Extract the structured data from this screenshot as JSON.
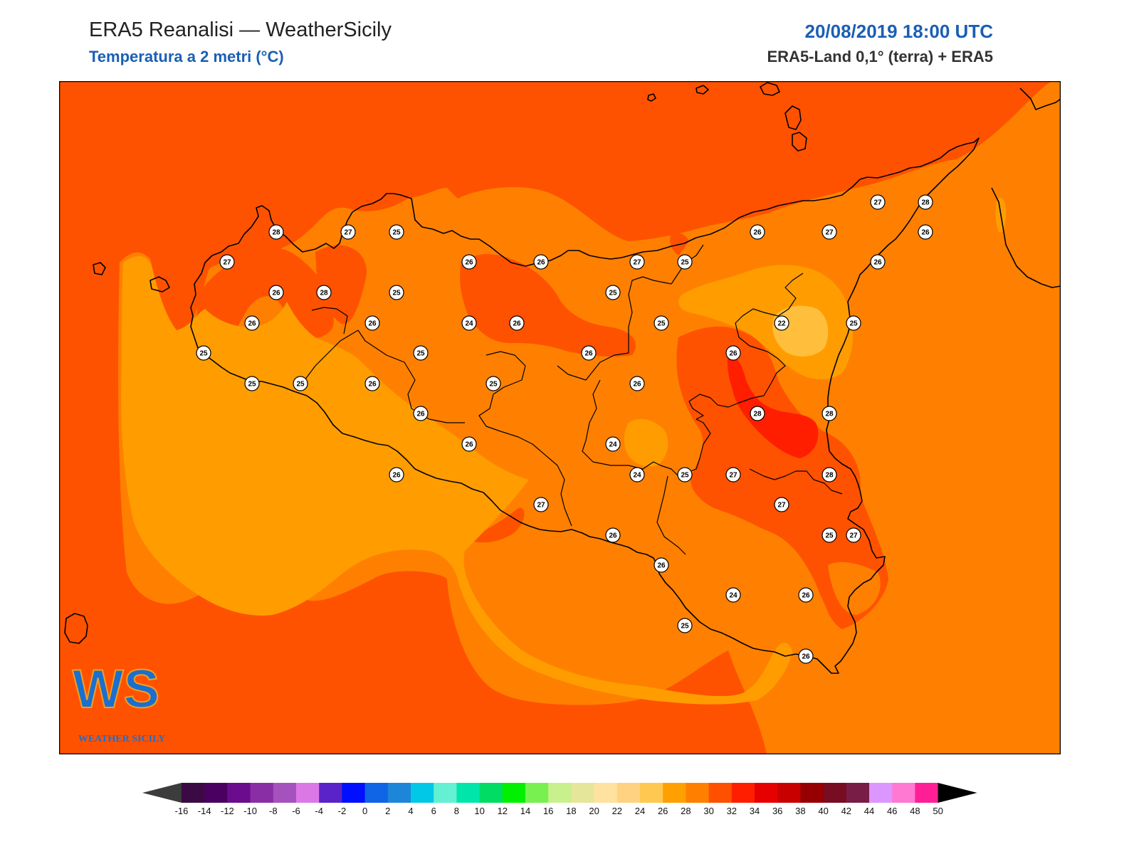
{
  "header": {
    "title": "ERA5 Reanalisi — WeatherSicily",
    "subtitle": "Temperatura a 2 metri (°C)",
    "datetime": "20/08/2019 18:00 UTC",
    "source": "ERA5-Land 0,1° (terra) + ERA5"
  },
  "logo": {
    "letters": "WS",
    "caption": "WEATHER SICILY"
  },
  "colors": {
    "t24": "#ff9d00",
    "t26": "#ff8000",
    "t28": "#ff5200",
    "t30": "#ff1e00",
    "t22": "#ffbe3c",
    "coast": "#000000",
    "accent": "#1a5fb4"
  },
  "stations": [
    {
      "v": "28"
    },
    {
      "v": "27"
    },
    {
      "v": "25"
    },
    {
      "v": "27"
    },
    {
      "v": "26"
    },
    {
      "v": "28"
    },
    {
      "v": "25"
    },
    {
      "v": "26"
    },
    {
      "v": "26"
    },
    {
      "v": "26"
    },
    {
      "v": "26"
    },
    {
      "v": "24"
    },
    {
      "v": "26"
    },
    {
      "v": "25"
    },
    {
      "v": "25"
    },
    {
      "v": "25"
    },
    {
      "v": "25"
    },
    {
      "v": "26"
    },
    {
      "v": "25"
    },
    {
      "v": "26"
    },
    {
      "v": "26"
    },
    {
      "v": "26"
    },
    {
      "v": "26"
    },
    {
      "v": "27"
    },
    {
      "v": "25"
    },
    {
      "v": "25"
    },
    {
      "v": "25"
    },
    {
      "v": "24"
    },
    {
      "v": "26"
    },
    {
      "v": "24"
    },
    {
      "v": "24"
    },
    {
      "v": "25"
    },
    {
      "v": "26"
    },
    {
      "v": "26"
    },
    {
      "v": "25"
    },
    {
      "v": "26"
    },
    {
      "v": "27"
    },
    {
      "v": "25"
    },
    {
      "v": "27"
    },
    {
      "v": "28"
    },
    {
      "v": "27"
    },
    {
      "v": "26"
    },
    {
      "v": "27"
    },
    {
      "v": "26"
    },
    {
      "v": "22"
    },
    {
      "v": "25"
    },
    {
      "v": "28"
    },
    {
      "v": "28"
    },
    {
      "v": "27"
    },
    {
      "v": "27"
    },
    {
      "v": "26"
    },
    {
      "v": "26"
    },
    {
      "v": "26"
    },
    {
      "v": "28"
    }
  ],
  "colorbar": {
    "ticks": [
      "-16",
      "-14",
      "-12",
      "-10",
      "-8",
      "-6",
      "-4",
      "-2",
      "0",
      "2",
      "4",
      "6",
      "8",
      "10",
      "12",
      "14",
      "16",
      "18",
      "20",
      "22",
      "24",
      "26",
      "28",
      "30",
      "32",
      "34",
      "36",
      "38",
      "40",
      "42",
      "44",
      "46",
      "48",
      "50"
    ],
    "colors": [
      "#3b0a45",
      "#4a0060",
      "#6b0c8e",
      "#8a2ea6",
      "#a652be",
      "#dc78e6",
      "#5a23c8",
      "#0010ff",
      "#1064e6",
      "#1e86d8",
      "#00c8e6",
      "#64f0d2",
      "#00e6aa",
      "#00dc64",
      "#00f000",
      "#78f050",
      "#c8f08c",
      "#e6e69b",
      "#ffe1a0",
      "#ffd282",
      "#ffc850",
      "#ffa000",
      "#ff8000",
      "#ff5000",
      "#ff1e00",
      "#e60000",
      "#c80000",
      "#960000",
      "#780c23",
      "#781e46",
      "#dc96ff",
      "#ff78d2",
      "#ff1e96",
      "#787878",
      "#3c3c3c"
    ],
    "under_color": "#3c3c3c",
    "over_color": "#000000"
  }
}
